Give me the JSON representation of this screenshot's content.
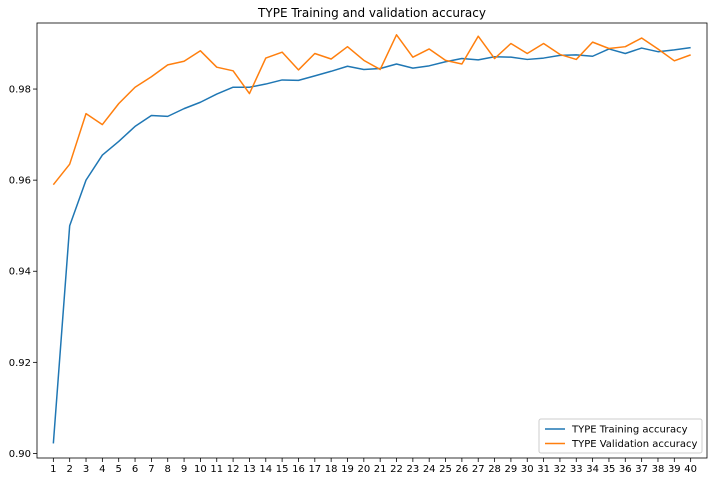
{
  "chart_data": {
    "type": "line",
    "title": "TYPE Training and validation accuracy",
    "xlabel": "",
    "ylabel": "",
    "x": [
      1,
      2,
      3,
      4,
      5,
      6,
      7,
      8,
      9,
      10,
      11,
      12,
      13,
      14,
      15,
      16,
      17,
      18,
      19,
      20,
      21,
      22,
      23,
      24,
      25,
      26,
      27,
      28,
      29,
      30,
      31,
      32,
      33,
      34,
      35,
      36,
      37,
      38,
      39,
      40
    ],
    "xlim": [
      0,
      41
    ],
    "ylim": [
      0.899,
      0.9945
    ],
    "yticks": [
      0.9,
      0.92,
      0.94,
      0.96,
      0.98
    ],
    "ytick_labels": [
      "0.90",
      "0.92",
      "0.94",
      "0.96",
      "0.98"
    ],
    "grid": false,
    "legend_position": "bottom-right",
    "series": [
      {
        "name": "TYPE Training accuracy",
        "color": "#1f77b4",
        "values": [
          0.9022,
          0.95,
          0.96,
          0.9655,
          0.9685,
          0.9718,
          0.9742,
          0.974,
          0.9757,
          0.9771,
          0.9789,
          0.9804,
          0.9804,
          0.9811,
          0.982,
          0.9819,
          0.9829,
          0.9839,
          0.985,
          0.9843,
          0.9845,
          0.9855,
          0.9846,
          0.9851,
          0.986,
          0.9867,
          0.9864,
          0.9871,
          0.987,
          0.9865,
          0.9868,
          0.9874,
          0.9875,
          0.9872,
          0.9888,
          0.9878,
          0.989,
          0.9882,
          0.9886,
          0.9891
        ]
      },
      {
        "name": "TYPE Validation accuracy",
        "color": "#ff7f0e",
        "values": [
          0.959,
          0.9635,
          0.9746,
          0.9722,
          0.9768,
          0.9804,
          0.9827,
          0.9853,
          0.9861,
          0.9884,
          0.9848,
          0.984,
          0.979,
          0.9868,
          0.9881,
          0.9842,
          0.9878,
          0.9866,
          0.9893,
          0.9863,
          0.9843,
          0.9919,
          0.987,
          0.9888,
          0.9863,
          0.9855,
          0.9916,
          0.9867,
          0.99,
          0.9878,
          0.99,
          0.9876,
          0.9865,
          0.9903,
          0.9889,
          0.9893,
          0.9912,
          0.9888,
          0.9862,
          0.9875
        ]
      }
    ]
  }
}
